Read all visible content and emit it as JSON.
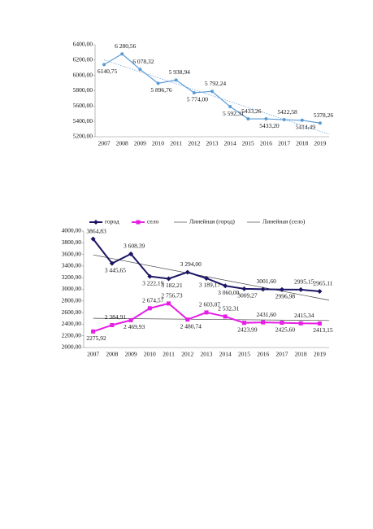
{
  "chart_data": [
    {
      "type": "line",
      "categories": [
        "2007",
        "2008",
        "2009",
        "2010",
        "2011",
        "2012",
        "2013",
        "2014",
        "2015",
        "2016",
        "2017",
        "2018",
        "2019"
      ],
      "series": [
        {
          "name": null,
          "color": "#5b9bd5",
          "values": [
            6140.75,
            6280.56,
            6078.32,
            5896.76,
            5938.94,
            5774.0,
            5792.24,
            5592.31,
            5433.26,
            5433.2,
            5422.58,
            5414.49,
            5378.26
          ],
          "value_labels": [
            "6140,75",
            "6 280,56",
            "6 078,32",
            "5 896,76",
            "5 938,94",
            "5 774,00",
            "5 792,24",
            "5 592,31",
            "5433,26",
            "5433,20",
            "5422,58",
            "5414,49",
            "5378,26"
          ],
          "trendline": true
        }
      ],
      "ylim": [
        5200,
        6400
      ],
      "yticks": [
        {
          "value": 5200,
          "label": "5200,00"
        },
        {
          "value": 5400,
          "label": "5400,00"
        },
        {
          "value": 5600,
          "label": "5600,00"
        },
        {
          "value": 5800,
          "label": "5800,00"
        },
        {
          "value": 6000,
          "label": "6000,00"
        },
        {
          "value": 6200,
          "label": "6200,00"
        },
        {
          "value": 6400,
          "label": "6400,00"
        }
      ],
      "grid": false
    },
    {
      "type": "line",
      "categories": [
        "2007",
        "2008",
        "2009",
        "2010",
        "2011",
        "2012",
        "2013",
        "2014",
        "2015",
        "2016",
        "2017",
        "2018",
        "2019"
      ],
      "series": [
        {
          "name": "город",
          "color": "#1b1464",
          "marker": "diamond",
          "trend_name": "Линейная (город)",
          "values": [
            3864.83,
            3445.65,
            3608.39,
            3222.19,
            3182.21,
            3294.0,
            3189.17,
            3060.0,
            3009.27,
            3001.6,
            2996.98,
            2995.15,
            2965.11
          ],
          "value_labels": [
            "3864,83",
            "3 445,65",
            "3 608,39",
            "3 222,19",
            "3 182,21",
            "3 294,00",
            "3 189,17",
            "3 060,00",
            "3009,27",
            "3001,60",
            "2996,98",
            "2995,15",
            "2965,11"
          ]
        },
        {
          "name": "село",
          "color": "#e61ee6",
          "marker": "square",
          "trend_name": "Линейная (село)",
          "values": [
            2275.92,
            2384.91,
            2469.93,
            2674.57,
            2756.73,
            2480.74,
            2603.07,
            2532.31,
            2423.99,
            2431.6,
            2425.6,
            2415.34,
            2413.15
          ],
          "value_labels": [
            "2275,92",
            "2 384,91",
            "2 469,93",
            "2 674,57",
            "2 756,73",
            "2 480,74",
            "2 603,07",
            "2 532,31",
            "2423,99",
            "2431,60",
            "2425,60",
            "2415,34",
            "2413,15"
          ]
        }
      ],
      "ylim": [
        2000,
        4000
      ],
      "yticks": [
        {
          "value": 2000,
          "label": "2000,00"
        },
        {
          "value": 2200,
          "label": "2200,00"
        },
        {
          "value": 2400,
          "label": "2400,00"
        },
        {
          "value": 2600,
          "label": "2600,00"
        },
        {
          "value": 2800,
          "label": "2800,00"
        },
        {
          "value": 3000,
          "label": "3000,00"
        },
        {
          "value": 3200,
          "label": "3200,00"
        },
        {
          "value": 3400,
          "label": "3400,00"
        },
        {
          "value": 3600,
          "label": "3600,00"
        },
        {
          "value": 3800,
          "label": "3800,00"
        },
        {
          "value": 4000,
          "label": "4000,00"
        }
      ],
      "grid": false,
      "legend": "top"
    }
  ]
}
